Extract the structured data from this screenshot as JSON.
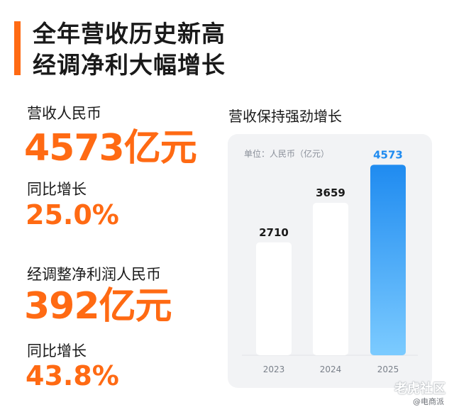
{
  "headline": {
    "line1": "全年营收历史新高",
    "line2": "经调净利大幅增长"
  },
  "revenue": {
    "label": "营收人民币",
    "value": "4573亿元",
    "growth_label": "同比增长",
    "growth": "25.0%"
  },
  "net_profit": {
    "label": "经调整净利润人民币",
    "value": "392亿元",
    "growth_label": "同比增长",
    "growth": "43.8%"
  },
  "chart_title": "营收保持强劲增长",
  "chart_data": {
    "type": "bar",
    "unit": "单位：人民币（亿元）",
    "categories": [
      "2023",
      "2024",
      "2025"
    ],
    "values": [
      2710,
      3659,
      4573
    ],
    "value_labels": [
      "2710",
      "3659",
      "4573"
    ],
    "ylim": [
      0,
      5000
    ],
    "grid": false,
    "highlight_index": 2,
    "colors": {
      "bar": "#ffffff",
      "highlight_top": "#1f8bf0",
      "highlight_bottom": "#7ccbff",
      "label": "#1a1a1a",
      "highlight_label": "#1f8bf0",
      "tick": "#7a808a"
    }
  },
  "watermark": {
    "main": "老虎社区",
    "sub": "@电商派"
  },
  "colors": {
    "accent": "#ff6a13",
    "panel": "#f2f3f5"
  }
}
